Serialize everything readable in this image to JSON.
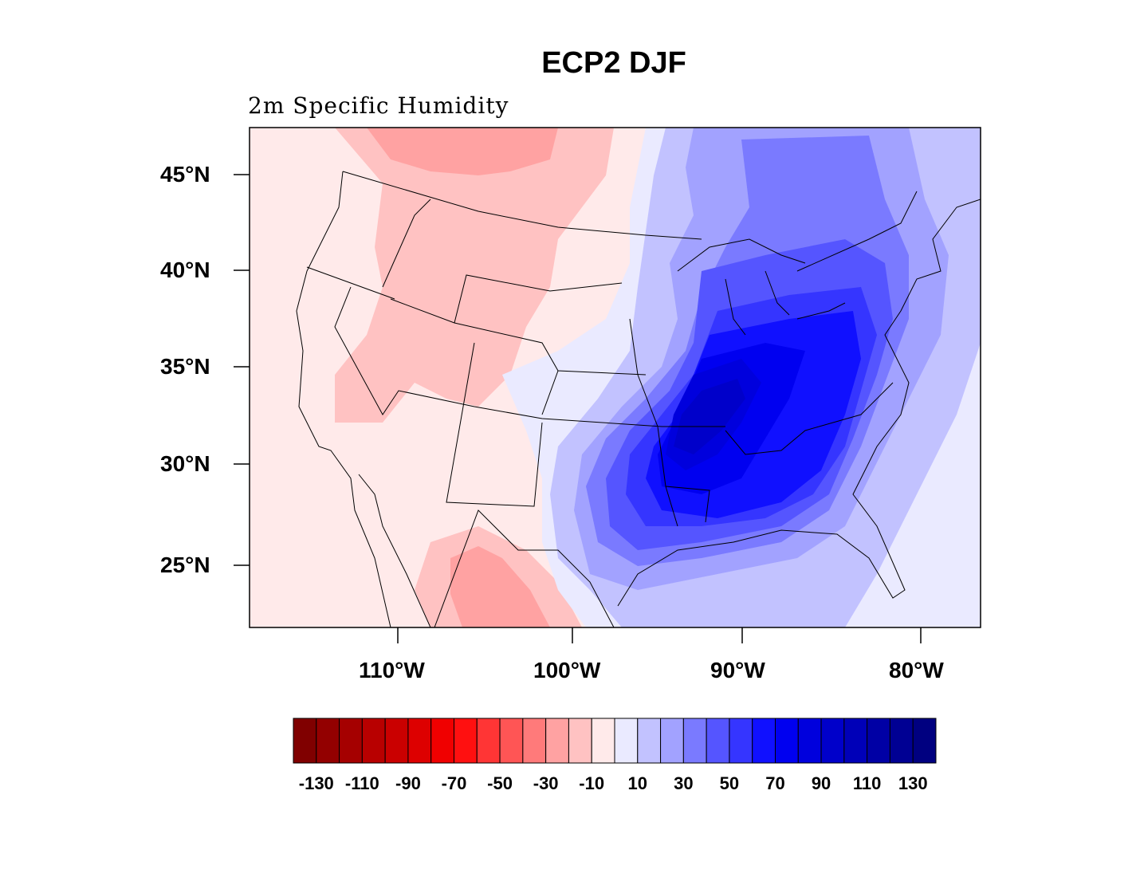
{
  "title": "ECP2 DJF",
  "subtitle": "2m Specific Humidity",
  "map": {
    "lat_ticks": [
      "45°N",
      "40°N",
      "35°N",
      "30°N",
      "25°N"
    ],
    "lon_ticks": [
      "110°W",
      "100°W",
      "90°W",
      "80°W"
    ],
    "lon_range": [
      "119°W",
      "76.5°W"
    ],
    "lat_range": [
      "22.3°N",
      "47.5°N"
    ]
  },
  "colorbar": {
    "labels": [
      "-130",
      "-110",
      "-90",
      "-70",
      "-50",
      "-30",
      "-10",
      "10",
      "30",
      "50",
      "70",
      "90",
      "110",
      "130"
    ],
    "levels": [
      -130,
      -120,
      -110,
      -100,
      -90,
      -80,
      -70,
      -60,
      -50,
      -40,
      -30,
      -20,
      -10,
      0,
      10,
      20,
      30,
      40,
      50,
      60,
      70,
      80,
      90,
      100,
      110,
      120,
      130
    ],
    "colors": [
      "#800000",
      "#930000",
      "#a50000",
      "#b80000",
      "#ca0000",
      "#dd0000",
      "#f00000",
      "#ff1010",
      "#ff3535",
      "#ff5555",
      "#ff7a7a",
      "#ffa2a2",
      "#ffc2c2",
      "#ffeaea",
      "#eaeaff",
      "#c2c2ff",
      "#a2a2ff",
      "#7a7aff",
      "#5555ff",
      "#3535ff",
      "#1010ff",
      "#0000f0",
      "#0000dd",
      "#0000ca",
      "#0000b8",
      "#0000a5",
      "#000093",
      "#000080"
    ]
  }
}
